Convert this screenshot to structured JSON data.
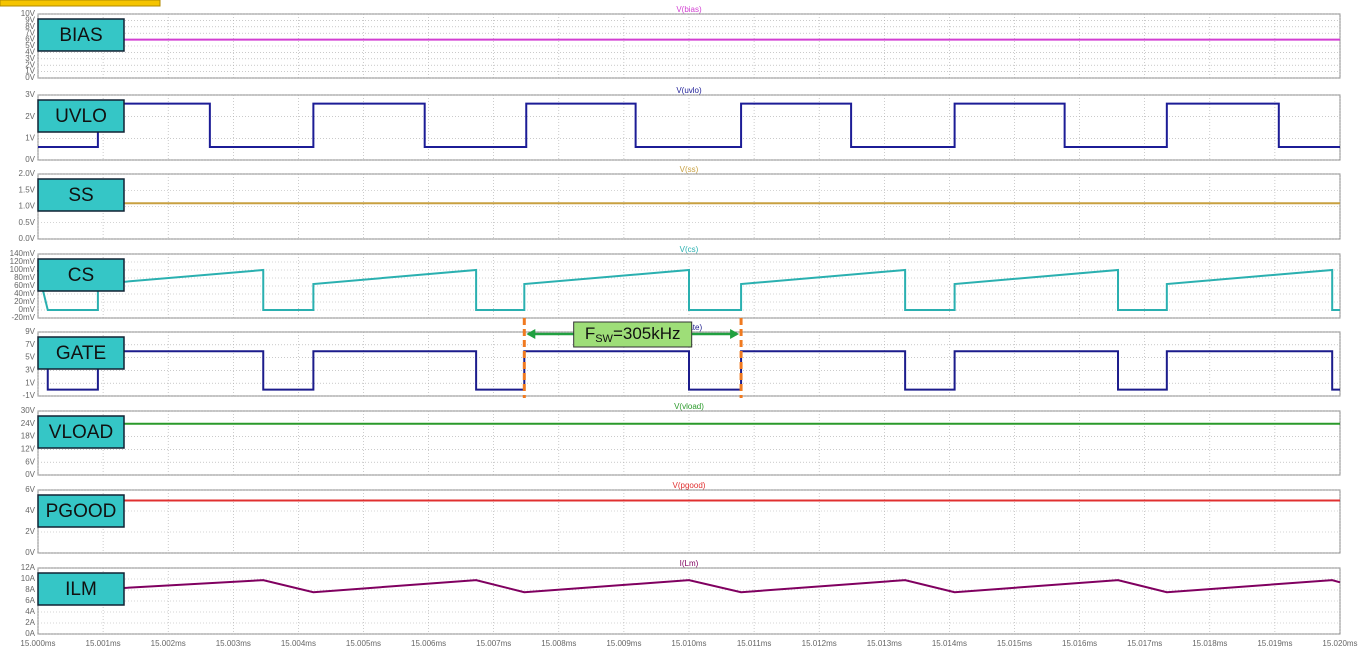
{
  "chart_data": [
    {
      "type": "line",
      "label": "BIAS",
      "title": "V(bias)",
      "xlim": [
        15.0,
        15.02
      ],
      "ylim": [
        0,
        10
      ],
      "yticks": [
        {
          "value": 0,
          "label": "0V"
        },
        {
          "value": 1,
          "label": "1V"
        },
        {
          "value": 2,
          "label": "2V"
        },
        {
          "value": 3,
          "label": "3V"
        },
        {
          "value": 4,
          "label": "4V"
        },
        {
          "value": 5,
          "label": "5V"
        },
        {
          "value": 6,
          "label": "6V"
        },
        {
          "value": 7,
          "label": "7V"
        },
        {
          "value": 8,
          "label": "8V"
        },
        {
          "value": 9,
          "label": "9V"
        },
        {
          "value": 10,
          "label": "10V"
        }
      ],
      "x": [
        15.0,
        15.02
      ],
      "series": [
        {
          "color": "#d23fd2",
          "values": [
            6,
            6
          ]
        }
      ]
    },
    {
      "type": "line",
      "label": "UVLO",
      "title": "V(uvlo)",
      "xlim": [
        15.0,
        15.02
      ],
      "ylim": [
        0,
        3
      ],
      "yticks": [
        {
          "value": 0,
          "label": "0V"
        },
        {
          "value": 1,
          "label": "1V"
        },
        {
          "value": 2,
          "label": "2V"
        },
        {
          "value": 3,
          "label": "3V"
        }
      ],
      "x": [
        15.0,
        15.00092,
        15.00092,
        15.00264,
        15.00264,
        15.00423,
        15.00423,
        15.00594,
        15.00594,
        15.0075,
        15.0075,
        15.00918,
        15.00918,
        15.0108,
        15.0108,
        15.01249,
        15.01249,
        15.01408,
        15.01408,
        15.01577,
        15.01577,
        15.01734,
        15.01734,
        15.01906,
        15.01906,
        15.02
      ],
      "series": [
        {
          "color": "#1c1c96",
          "values": [
            0.6,
            0.6,
            2.6,
            2.6,
            0.6,
            0.6,
            2.6,
            2.6,
            0.6,
            0.6,
            2.6,
            2.6,
            0.6,
            0.6,
            2.6,
            2.6,
            0.6,
            0.6,
            2.6,
            2.6,
            0.6,
            0.6,
            2.6,
            2.6,
            0.6,
            0.6
          ]
        }
      ]
    },
    {
      "type": "line",
      "label": "SS",
      "title": "V(ss)",
      "xlim": [
        15.0,
        15.02
      ],
      "ylim": [
        0,
        2
      ],
      "yticks": [
        {
          "value": 0,
          "label": "0.0V"
        },
        {
          "value": 0.5,
          "label": "0.5V"
        },
        {
          "value": 1,
          "label": "1.0V"
        },
        {
          "value": 1.5,
          "label": "1.5V"
        },
        {
          "value": 2,
          "label": "2.0V"
        }
      ],
      "x": [
        15.0,
        15.02
      ],
      "series": [
        {
          "color": "#c8a040",
          "values": [
            1.1,
            1.1
          ]
        }
      ]
    },
    {
      "type": "line",
      "label": "CS",
      "title": "V(cs)",
      "xlim": [
        15.0,
        15.02
      ],
      "ylim": [
        -20,
        140
      ],
      "yticks": [
        {
          "value": -20,
          "label": "-20mV"
        },
        {
          "value": 0,
          "label": "0mV"
        },
        {
          "value": 20,
          "label": "20mV"
        },
        {
          "value": 40,
          "label": "40mV"
        },
        {
          "value": 60,
          "label": "60mV"
        },
        {
          "value": 80,
          "label": "80mV"
        },
        {
          "value": 100,
          "label": "100mV"
        },
        {
          "value": 120,
          "label": "120mV"
        },
        {
          "value": 140,
          "label": "140mV"
        }
      ],
      "x": [
        15.0,
        15.00015,
        15.00092,
        15.00092,
        15.00346,
        15.00346,
        15.00423,
        15.00423,
        15.00673,
        15.00673,
        15.00747,
        15.00747,
        15.01,
        15.01,
        15.0108,
        15.0108,
        15.01332,
        15.01332,
        15.01408,
        15.01408,
        15.01659,
        15.01659,
        15.01734,
        15.01734,
        15.01988,
        15.01988,
        15.02
      ],
      "series": [
        {
          "color": "#2ab0b0",
          "values": [
            100,
            0,
            0,
            65,
            100,
            0,
            0,
            65,
            100,
            0,
            0,
            65,
            100,
            0,
            0,
            65,
            100,
            0,
            0,
            65,
            100,
            0,
            0,
            65,
            100,
            0,
            0
          ]
        }
      ]
    },
    {
      "type": "line",
      "label": "GATE",
      "title": "V(gate)",
      "xlim": [
        15.0,
        15.02
      ],
      "ylim": [
        -1,
        9
      ],
      "yticks": [
        {
          "value": -1,
          "label": "-1V"
        },
        {
          "value": 1,
          "label": "1V"
        },
        {
          "value": 3,
          "label": "3V"
        },
        {
          "value": 5,
          "label": "5V"
        },
        {
          "value": 7,
          "label": "7V"
        },
        {
          "value": 9,
          "label": "9V"
        }
      ],
      "x": [
        15.0,
        15.00015,
        15.00015,
        15.00092,
        15.00092,
        15.00346,
        15.00346,
        15.00423,
        15.00423,
        15.00673,
        15.00673,
        15.00747,
        15.00747,
        15.01,
        15.01,
        15.0108,
        15.0108,
        15.01332,
        15.01332,
        15.01408,
        15.01408,
        15.01659,
        15.01659,
        15.01734,
        15.01734,
        15.01988,
        15.01988,
        15.02
      ],
      "series": [
        {
          "color": "#1c1c8c",
          "values": [
            6,
            6,
            0,
            0,
            6,
            6,
            0,
            0,
            6,
            6,
            0,
            0,
            6,
            6,
            0,
            0,
            6,
            6,
            0,
            0,
            6,
            6,
            0,
            0,
            6,
            6,
            0,
            0
          ]
        }
      ],
      "annotation": {
        "parts": [
          "F",
          "SW",
          "=305kHz"
        ],
        "x": [
          15.00747,
          15.0108
        ]
      }
    },
    {
      "type": "line",
      "label": "VLOAD",
      "title": "V(vload)",
      "xlim": [
        15.0,
        15.02
      ],
      "ylim": [
        0,
        30
      ],
      "yticks": [
        {
          "value": 0,
          "label": "0V"
        },
        {
          "value": 6,
          "label": "6V"
        },
        {
          "value": 12,
          "label": "12V"
        },
        {
          "value": 18,
          "label": "18V"
        },
        {
          "value": 24,
          "label": "24V"
        },
        {
          "value": 30,
          "label": "30V"
        }
      ],
      "x": [
        15.0,
        15.02
      ],
      "series": [
        {
          "color": "#2a9a2a",
          "values": [
            24,
            24
          ]
        }
      ]
    },
    {
      "type": "line",
      "label": "PGOOD",
      "title": "V(pgood)",
      "xlim": [
        15.0,
        15.02
      ],
      "ylim": [
        0,
        6
      ],
      "yticks": [
        {
          "value": 0,
          "label": "0V"
        },
        {
          "value": 2,
          "label": "2V"
        },
        {
          "value": 4,
          "label": "4V"
        },
        {
          "value": 6,
          "label": "6V"
        }
      ],
      "x": [
        15.0,
        15.02
      ],
      "series": [
        {
          "color": "#e03030",
          "values": [
            5,
            5
          ]
        }
      ]
    },
    {
      "type": "line",
      "label": "ILM",
      "title": "I(Lm)",
      "xlim": [
        15.0,
        15.02
      ],
      "ylim": [
        0,
        12
      ],
      "yticks": [
        {
          "value": 0,
          "label": "0A"
        },
        {
          "value": 2,
          "label": "2A"
        },
        {
          "value": 4,
          "label": "4A"
        },
        {
          "value": 6,
          "label": "6A"
        },
        {
          "value": 8,
          "label": "8A"
        },
        {
          "value": 10,
          "label": "10A"
        },
        {
          "value": 12,
          "label": "12A"
        }
      ],
      "x": [
        15.0,
        15.00092,
        15.00346,
        15.00423,
        15.00673,
        15.00747,
        15.01,
        15.0108,
        15.01332,
        15.01408,
        15.01659,
        15.01734,
        15.01988,
        15.02
      ],
      "series": [
        {
          "color": "#800060",
          "values": [
            7.8,
            8.1,
            9.8,
            7.6,
            9.8,
            7.6,
            9.8,
            7.6,
            9.8,
            7.6,
            9.8,
            7.6,
            9.8,
            9.4
          ]
        }
      ],
      "xticks": [
        {
          "value": 15.0,
          "label": "15.000ms"
        },
        {
          "value": 15.001,
          "label": "15.001ms"
        },
        {
          "value": 15.002,
          "label": "15.002ms"
        },
        {
          "value": 15.003,
          "label": "15.003ms"
        },
        {
          "value": 15.004,
          "label": "15.004ms"
        },
        {
          "value": 15.005,
          "label": "15.005ms"
        },
        {
          "value": 15.006,
          "label": "15.006ms"
        },
        {
          "value": 15.007,
          "label": "15.007ms"
        },
        {
          "value": 15.008,
          "label": "15.008ms"
        },
        {
          "value": 15.009,
          "label": "15.009ms"
        },
        {
          "value": 15.01,
          "label": "15.010ms"
        },
        {
          "value": 15.011,
          "label": "15.011ms"
        },
        {
          "value": 15.012,
          "label": "15.012ms"
        },
        {
          "value": 15.013,
          "label": "15.013ms"
        },
        {
          "value": 15.014,
          "label": "15.014ms"
        },
        {
          "value": 15.015,
          "label": "15.015ms"
        },
        {
          "value": 15.016,
          "label": "15.016ms"
        },
        {
          "value": 15.017,
          "label": "15.017ms"
        },
        {
          "value": 15.018,
          "label": "15.018ms"
        },
        {
          "value": 15.019,
          "label": "15.019ms"
        },
        {
          "value": 15.02,
          "label": "15.020ms"
        }
      ]
    }
  ]
}
